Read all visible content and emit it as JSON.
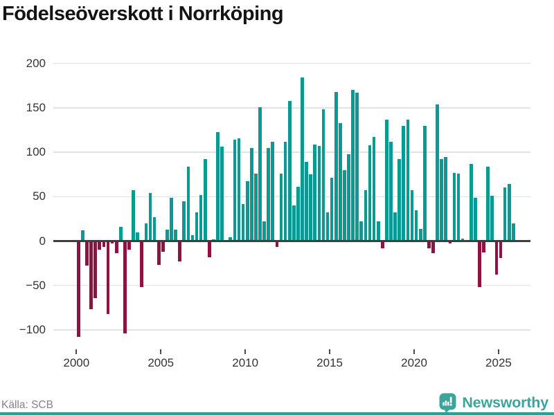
{
  "header": {
    "title": "Födelseöverskott i Norrköping"
  },
  "footer": {
    "source": "Källa: SCB",
    "brand": "Newsworthy"
  },
  "colors": {
    "positive_bar": "#0a9a94",
    "negative_bar": "#8e1342",
    "gridline": "#e2e2e2",
    "zero_line": "#3d3d3d",
    "axis_text": "#333333",
    "title_text": "#141414",
    "source_text": "#83838b",
    "brand_teal": "#3da49c",
    "bottom_strip": "#2f9e96"
  },
  "chart_data": {
    "type": "bar",
    "title": "Födelseöverskott i Norrköping",
    "frequency": "quarterly",
    "x_start": "2000-Q1",
    "x_end": "2025-Q4",
    "values": [
      -108,
      12,
      -28,
      -77,
      -64,
      -10,
      -7,
      -82,
      -3,
      -14,
      16,
      -104,
      -10,
      57,
      10,
      -52,
      20,
      54,
      27,
      -27,
      -12,
      13,
      49,
      13,
      -23,
      45,
      84,
      7,
      32,
      52,
      92,
      -18,
      2,
      123,
      106,
      0,
      4,
      114,
      116,
      42,
      67,
      105,
      76,
      151,
      22,
      105,
      112,
      -7,
      76,
      112,
      158,
      40,
      61,
      184,
      89,
      75,
      109,
      107,
      148,
      32,
      71,
      168,
      133,
      80,
      98,
      170,
      167,
      22,
      57,
      108,
      117,
      22,
      -8,
      137,
      112,
      32,
      92,
      130,
      137,
      57,
      35,
      14,
      130,
      -8,
      -14,
      154,
      92,
      95,
      -3,
      77,
      76,
      3,
      0,
      87,
      49,
      -52,
      -13,
      84,
      51,
      -38,
      -19,
      60,
      64,
      20
    ],
    "xticks": [
      {
        "year": 2000,
        "label": "2000"
      },
      {
        "year": 2005,
        "label": "2005"
      },
      {
        "year": 2010,
        "label": "2010"
      },
      {
        "year": 2015,
        "label": "2015"
      },
      {
        "year": 2020,
        "label": "2020"
      },
      {
        "year": 2025,
        "label": "2025"
      }
    ],
    "yticks": [
      {
        "value": 200,
        "label": "200"
      },
      {
        "value": 150,
        "label": "150"
      },
      {
        "value": 100,
        "label": "100"
      },
      {
        "value": 50,
        "label": "50"
      },
      {
        "value": 0,
        "label": "0"
      },
      {
        "value": -50,
        "label": "−50"
      },
      {
        "value": -100,
        "label": "−100"
      }
    ],
    "ylim": [
      -127,
      207
    ],
    "grid": true,
    "legend": false,
    "bar_color_positive": "#0a9a94",
    "bar_color_negative": "#8e1342"
  }
}
